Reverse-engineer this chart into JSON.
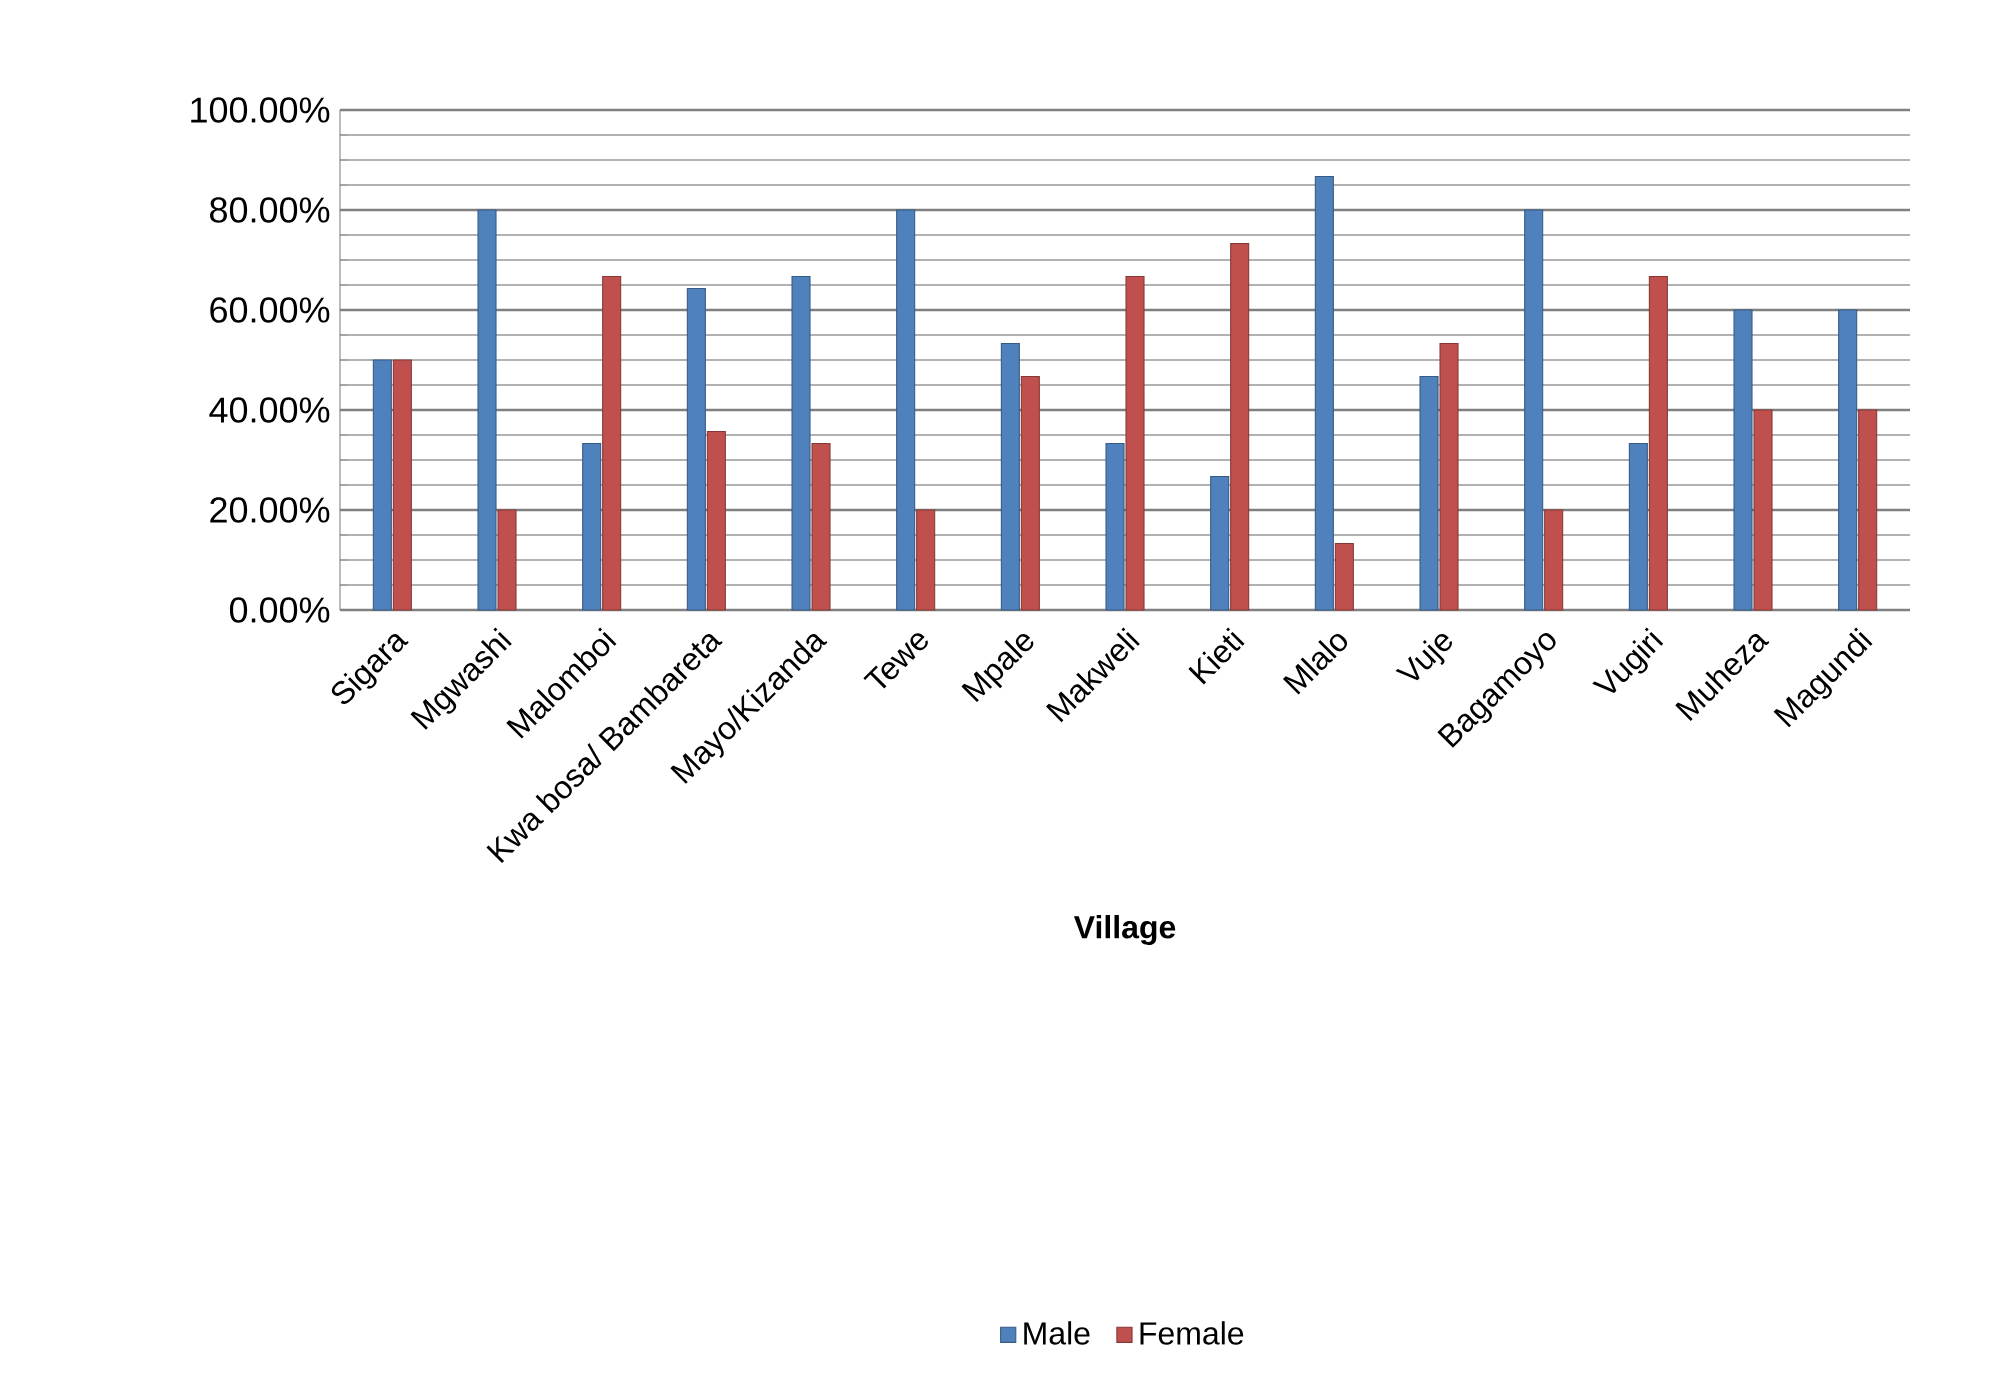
{
  "chart_data": {
    "type": "bar",
    "xlabel": "Village",
    "categories": [
      "Sigara",
      "Mgwashi",
      "Malomboi",
      "Kwa bosa/ Bambareta",
      "Mayo/Kizanda",
      "Tewe",
      "Mpale",
      "Makweli",
      "Kieti",
      "Mlalo",
      "Vuje",
      "Bagamoyo",
      "Vugiri",
      "Muheza",
      "Magundi"
    ],
    "series": [
      {
        "name": "Male",
        "color": "#4f81bd",
        "values": [
          50,
          80,
          33.3,
          64.3,
          66.7,
          80,
          53.3,
          33.3,
          26.7,
          86.7,
          46.7,
          80,
          33.3,
          60,
          60
        ]
      },
      {
        "name": "Female",
        "color": "#c0504d",
        "values": [
          50,
          20,
          66.7,
          35.7,
          33.3,
          20,
          46.7,
          66.7,
          73.3,
          13.3,
          53.3,
          20,
          66.7,
          40,
          40
        ]
      }
    ],
    "ylim": [
      0,
      100
    ],
    "yticks": [
      {
        "value": 0,
        "label": "0.00%"
      },
      {
        "value": 20,
        "label": "20.00%"
      },
      {
        "value": 40,
        "label": "40.00%"
      },
      {
        "value": 60,
        "label": "60.00%"
      },
      {
        "value": 80,
        "label": "80.00%"
      },
      {
        "value": 100,
        "label": "100.00%"
      }
    ],
    "grid": "y",
    "legend": "bottom"
  }
}
